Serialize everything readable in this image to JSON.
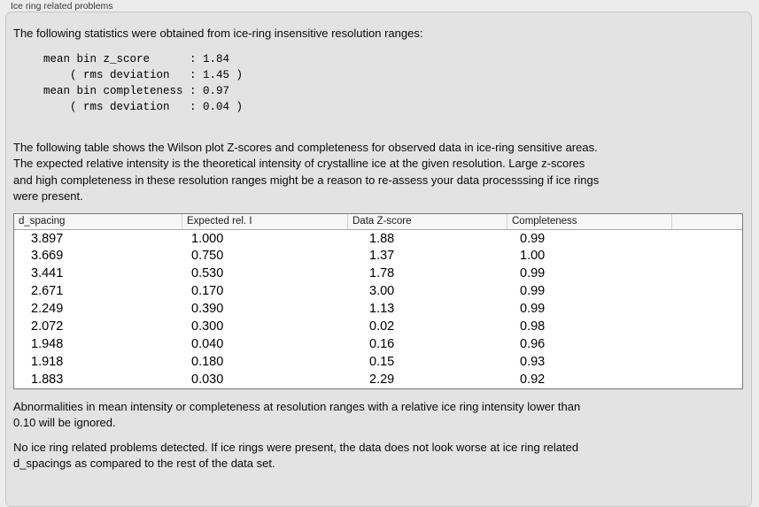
{
  "section": {
    "title": "Ice ring related problems",
    "intro": "The following statistics were obtained from ice-ring insensitive resolution ranges:",
    "stats_block": "mean bin z_score      : 1.84\n    ( rms deviation   : 1.45 )\nmean bin completeness : 0.97\n    ( rms deviation   : 0.04 )",
    "stats_values": {
      "mean_bin_z_score": "1.84",
      "z_score_rms_deviation": "1.45",
      "mean_bin_completeness": "0.97",
      "completeness_rms_deviation": "0.04"
    },
    "description": "The following table shows the Wilson plot Z-scores and completeness for observed data in ice-ring sensitive areas.\nThe expected relative intensity is the theoretical intensity of crystalline ice at the given resolution. Large z-scores\nand high completeness in these resolution ranges might be a reason to re-assess your data processsing if ice rings\nwere present.",
    "table": {
      "columns": [
        "d_spacing",
        "Expected rel. I",
        "Data Z-score",
        "Completeness"
      ],
      "rows": [
        [
          "3.897",
          "1.000",
          "1.88",
          "0.99"
        ],
        [
          "3.669",
          "0.750",
          "1.37",
          "1.00"
        ],
        [
          "3.441",
          "0.530",
          "1.78",
          "0.99"
        ],
        [
          "2.671",
          "0.170",
          "3.00",
          "0.99"
        ],
        [
          "2.249",
          "0.390",
          "1.13",
          "0.99"
        ],
        [
          "2.072",
          "0.300",
          "0.02",
          "0.98"
        ],
        [
          "1.948",
          "0.040",
          "0.16",
          "0.96"
        ],
        [
          "1.918",
          "0.180",
          "0.15",
          "0.93"
        ],
        [
          "1.883",
          "0.030",
          "2.29",
          "0.92"
        ]
      ]
    },
    "note_ignore": "Abnormalities in mean intensity or completeness at resolution ranges with a relative ice ring intensity lower than\n0.10 will be ignored.",
    "conclusion": "No ice ring related problems detected. If ice rings were present, the data does not look worse at ice ring related\nd_spacings as compared to the rest of the data set."
  }
}
